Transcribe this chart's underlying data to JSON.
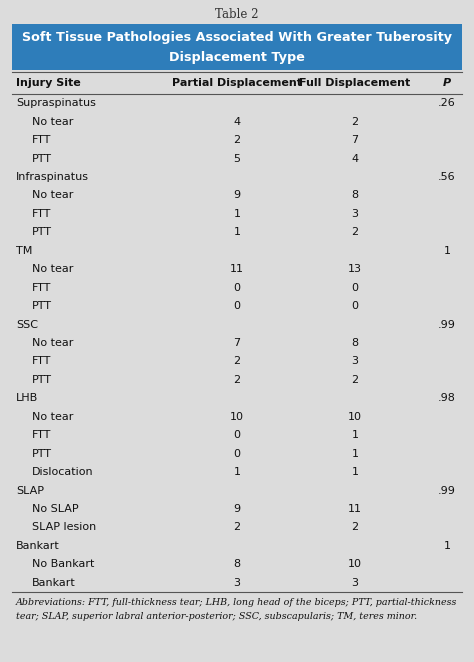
{
  "table_label": "Table 2",
  "title_line1": "Soft Tissue Pathologies Associated With Greater Tuberosity",
  "title_line2": "Displacement Type",
  "title_bg": "#2e7dba",
  "title_text_color": "#ffffff",
  "table_bg": "#dcdcdc",
  "col_headers": [
    "Injury Site",
    "Partial Displacement",
    "Full Displacement",
    "P"
  ],
  "rows": [
    {
      "label": "Supraspinatus",
      "indent": false,
      "partial": "",
      "full": "",
      "p": ".26"
    },
    {
      "label": "No tear",
      "indent": true,
      "partial": "4",
      "full": "2",
      "p": ""
    },
    {
      "label": "FTT",
      "indent": true,
      "partial": "2",
      "full": "7",
      "p": ""
    },
    {
      "label": "PTT",
      "indent": true,
      "partial": "5",
      "full": "4",
      "p": ""
    },
    {
      "label": "Infraspinatus",
      "indent": false,
      "partial": "",
      "full": "",
      "p": ".56"
    },
    {
      "label": "No tear",
      "indent": true,
      "partial": "9",
      "full": "8",
      "p": ""
    },
    {
      "label": "FTT",
      "indent": true,
      "partial": "1",
      "full": "3",
      "p": ""
    },
    {
      "label": "PTT",
      "indent": true,
      "partial": "1",
      "full": "2",
      "p": ""
    },
    {
      "label": "TM",
      "indent": false,
      "partial": "",
      "full": "",
      "p": "1"
    },
    {
      "label": "No tear",
      "indent": true,
      "partial": "11",
      "full": "13",
      "p": ""
    },
    {
      "label": "FTT",
      "indent": true,
      "partial": "0",
      "full": "0",
      "p": ""
    },
    {
      "label": "PTT",
      "indent": true,
      "partial": "0",
      "full": "0",
      "p": ""
    },
    {
      "label": "SSC",
      "indent": false,
      "partial": "",
      "full": "",
      "p": ".99"
    },
    {
      "label": "No tear",
      "indent": true,
      "partial": "7",
      "full": "8",
      "p": ""
    },
    {
      "label": "FTT",
      "indent": true,
      "partial": "2",
      "full": "3",
      "p": ""
    },
    {
      "label": "PTT",
      "indent": true,
      "partial": "2",
      "full": "2",
      "p": ""
    },
    {
      "label": "LHB",
      "indent": false,
      "partial": "",
      "full": "",
      "p": ".98"
    },
    {
      "label": "No tear",
      "indent": true,
      "partial": "10",
      "full": "10",
      "p": ""
    },
    {
      "label": "FTT",
      "indent": true,
      "partial": "0",
      "full": "1",
      "p": ""
    },
    {
      "label": "PTT",
      "indent": true,
      "partial": "0",
      "full": "1",
      "p": ""
    },
    {
      "label": "Dislocation",
      "indent": true,
      "partial": "1",
      "full": "1",
      "p": ""
    },
    {
      "label": "SLAP",
      "indent": false,
      "partial": "",
      "full": "",
      "p": ".99"
    },
    {
      "label": "No SLAP",
      "indent": true,
      "partial": "9",
      "full": "11",
      "p": ""
    },
    {
      "label": "SLAP lesion",
      "indent": true,
      "partial": "2",
      "full": "2",
      "p": ""
    },
    {
      "label": "Bankart",
      "indent": false,
      "partial": "",
      "full": "",
      "p": "1"
    },
    {
      "label": "No Bankart",
      "indent": true,
      "partial": "8",
      "full": "10",
      "p": ""
    },
    {
      "label": "Bankart",
      "indent": true,
      "partial": "3",
      "full": "3",
      "p": ""
    }
  ],
  "footnote_line1": "Abbreviations: FTT, full-thickness tear; LHB, long head of the biceps; PTT, partial-thickness",
  "footnote_line2": "tear; SLAP, superior labral anterior-posterior; SSC, subscapularis; TM, teres minor.",
  "figsize": [
    4.74,
    6.62
  ],
  "dpi": 100
}
